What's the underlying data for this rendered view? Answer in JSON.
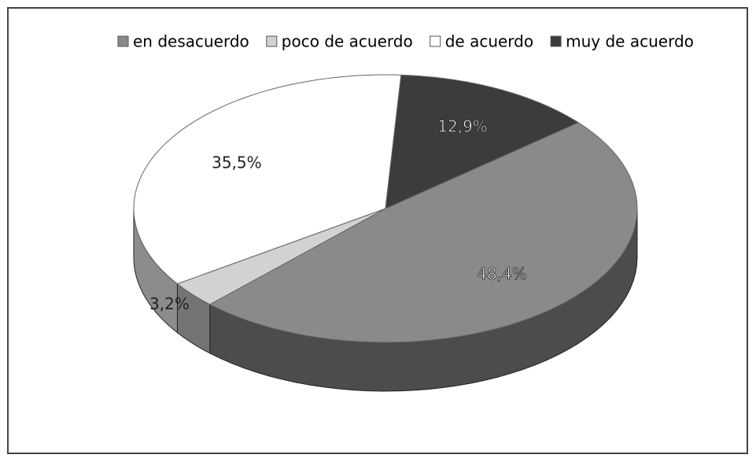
{
  "chart_data": {
    "type": "pie",
    "categories": [
      "en desacuerdo",
      "poco de acuerdo",
      "de acuerdo",
      "muy de acuerdo"
    ],
    "values": [
      48.4,
      3.2,
      35.5,
      12.9
    ],
    "value_labels": [
      "48,4%",
      "3,2%",
      "35,5%",
      "12,9%"
    ],
    "colors": [
      "#8a8a8a",
      "#d2d2d2",
      "#ffffff",
      "#3c3c3c"
    ],
    "legend": "top"
  }
}
